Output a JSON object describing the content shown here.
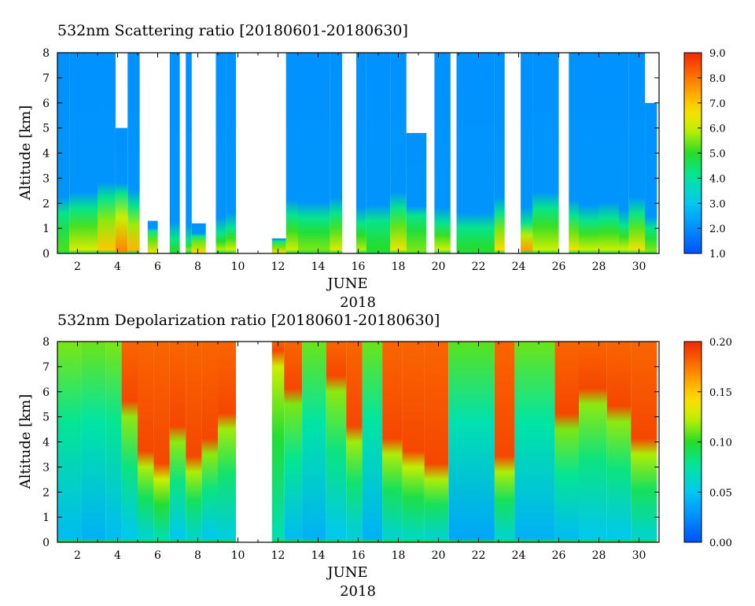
{
  "chart_data": [
    {
      "type": "heatmap",
      "title": "532nm Scattering ratio [20180601-20180630]",
      "ylabel": "Altitude [km]",
      "xlabel": "JUNE",
      "xlabel2": "2018",
      "xlim": [
        1,
        31
      ],
      "ylim": [
        0,
        8
      ],
      "x_ticks": [
        2,
        4,
        6,
        8,
        10,
        12,
        14,
        16,
        18,
        20,
        22,
        24,
        26,
        28,
        30
      ],
      "x_tick_labels": [
        "2",
        "4",
        "6",
        "8",
        "10",
        "12",
        "14",
        "16",
        "18",
        "20",
        "22",
        "24",
        "26",
        "28",
        "30"
      ],
      "y_ticks": [
        0,
        1,
        2,
        3,
        4,
        5,
        6,
        7,
        8
      ],
      "y_tick_labels": [
        "0",
        "1",
        "2",
        "3",
        "4",
        "5",
        "6",
        "7",
        "8"
      ],
      "colorbar": {
        "min": 1.0,
        "max": 9.0,
        "ticks": [
          1.0,
          2.0,
          3.0,
          4.0,
          5.0,
          6.0,
          7.0,
          8.0,
          9.0
        ],
        "tick_labels": [
          "1.0",
          "2.0",
          "3.0",
          "4.0",
          "5.0",
          "6.0",
          "7.0",
          "8.0",
          "9.0"
        ]
      },
      "columns": [
        {
          "from": 1.0,
          "to": 1.6,
          "top": 8,
          "base": 1.6,
          "low": 5.2
        },
        {
          "from": 1.6,
          "to": 3.0,
          "top": 8,
          "base": 1.8,
          "low": 6.2
        },
        {
          "from": 3.0,
          "to": 3.9,
          "top": 8,
          "base": 2.2,
          "low": 7.0
        },
        {
          "from": 3.9,
          "to": 4.5,
          "top": 5.0,
          "base": 2.4,
          "low": 7.8
        },
        {
          "from": 4.5,
          "to": 5.1,
          "top": 8,
          "base": 1.9,
          "low": 7.2
        },
        {
          "from": 5.5,
          "to": 6.0,
          "top": 1.3,
          "base": 0.9,
          "low": 6.5
        },
        {
          "from": 6.6,
          "to": 7.1,
          "top": 8,
          "base": 0.6,
          "low": 5.0
        },
        {
          "from": 7.4,
          "to": 7.7,
          "top": 8,
          "base": 0.5,
          "low": 5.5
        },
        {
          "from": 7.7,
          "to": 8.4,
          "top": 1.2,
          "base": 0.7,
          "low": 6.8
        },
        {
          "from": 8.9,
          "to": 9.4,
          "top": 8,
          "base": 0.8,
          "low": 5.8
        },
        {
          "from": 9.4,
          "to": 9.9,
          "top": 8,
          "base": 1.0,
          "low": 6.0
        },
        {
          "from": 11.7,
          "to": 12.4,
          "top": 0.6,
          "base": 0.5,
          "low": 6.5
        },
        {
          "from": 12.4,
          "to": 13.0,
          "top": 8,
          "base": 1.5,
          "low": 6.0
        },
        {
          "from": 13.0,
          "to": 14.6,
          "top": 8,
          "base": 1.4,
          "low": 5.5
        },
        {
          "from": 14.6,
          "to": 15.2,
          "top": 8,
          "base": 1.6,
          "low": 6.2
        },
        {
          "from": 15.9,
          "to": 16.4,
          "top": 8,
          "base": 1.2,
          "low": 5.8
        },
        {
          "from": 16.4,
          "to": 17.6,
          "top": 8,
          "base": 1.3,
          "low": 5.0
        },
        {
          "from": 17.6,
          "to": 18.4,
          "top": 8,
          "base": 1.8,
          "low": 6.5
        },
        {
          "from": 18.4,
          "to": 19.4,
          "top": 4.8,
          "base": 1.5,
          "low": 5.5
        },
        {
          "from": 19.8,
          "to": 20.6,
          "top": 8,
          "base": 1.2,
          "low": 6.0
        },
        {
          "from": 20.9,
          "to": 22.8,
          "top": 8,
          "base": 1.0,
          "low": 5.0
        },
        {
          "from": 22.8,
          "to": 23.3,
          "top": 8,
          "base": 1.6,
          "low": 6.8
        },
        {
          "from": 24.1,
          "to": 24.7,
          "top": 8,
          "base": 1.2,
          "low": 7.5
        },
        {
          "from": 24.7,
          "to": 26.0,
          "top": 8,
          "base": 1.8,
          "low": 6.0
        },
        {
          "from": 26.5,
          "to": 27.0,
          "top": 8,
          "base": 1.5,
          "low": 6.5
        },
        {
          "from": 27.0,
          "to": 28.0,
          "top": 8,
          "base": 1.3,
          "low": 6.0
        },
        {
          "from": 28.0,
          "to": 29.0,
          "top": 8,
          "base": 1.4,
          "low": 6.0
        },
        {
          "from": 29.0,
          "to": 29.5,
          "top": 8,
          "base": 1.1,
          "low": 6.0
        },
        {
          "from": 29.5,
          "to": 30.3,
          "top": 8,
          "base": 1.6,
          "low": 6.5
        },
        {
          "from": 30.3,
          "to": 30.9,
          "top": 6.0,
          "base": 1.0,
          "low": 5.5
        }
      ]
    },
    {
      "type": "heatmap",
      "title": "532nm Depolarization ratio [20180601-20180630]",
      "ylabel": "Altitude [km]",
      "xlabel": "JUNE",
      "xlabel2": "2018",
      "xlim": [
        1,
        31
      ],
      "ylim": [
        0,
        8
      ],
      "x_ticks": [
        2,
        4,
        6,
        8,
        10,
        12,
        14,
        16,
        18,
        20,
        22,
        24,
        26,
        28,
        30
      ],
      "x_tick_labels": [
        "2",
        "4",
        "6",
        "8",
        "10",
        "12",
        "14",
        "16",
        "18",
        "20",
        "22",
        "24",
        "26",
        "28",
        "30"
      ],
      "y_ticks": [
        0,
        1,
        2,
        3,
        4,
        5,
        6,
        7,
        8
      ],
      "y_tick_labels": [
        "0",
        "1",
        "2",
        "3",
        "4",
        "5",
        "6",
        "7",
        "8"
      ],
      "colorbar": {
        "min": 0.0,
        "max": 0.2,
        "ticks": [
          0.0,
          0.05,
          0.1,
          0.15,
          0.2
        ],
        "tick_labels": [
          "0.00",
          "0.05",
          "0.10",
          "0.15",
          "0.20"
        ]
      },
      "columns": [
        {
          "from": 1.0,
          "to": 2.2,
          "top": 8,
          "base": 8,
          "low": 0.045
        },
        {
          "from": 2.2,
          "to": 3.4,
          "top": 8,
          "base": 8,
          "low": 0.04
        },
        {
          "from": 3.4,
          "to": 4.2,
          "top": 8,
          "base": 8,
          "low": 0.045
        },
        {
          "from": 4.2,
          "to": 5.0,
          "top": 8,
          "base": 5.0,
          "low": 0.05
        },
        {
          "from": 5.0,
          "to": 5.8,
          "top": 8,
          "base": 3.0,
          "low": 0.06
        },
        {
          "from": 5.8,
          "to": 6.6,
          "top": 8,
          "base": 2.5,
          "low": 0.07
        },
        {
          "from": 6.6,
          "to": 7.4,
          "top": 8,
          "base": 4.0,
          "low": 0.05
        },
        {
          "from": 7.4,
          "to": 8.2,
          "top": 8,
          "base": 2.8,
          "low": 0.06
        },
        {
          "from": 8.2,
          "to": 9.0,
          "top": 8,
          "base": 3.5,
          "low": 0.05
        },
        {
          "from": 9.0,
          "to": 9.9,
          "top": 8,
          "base": 4.5,
          "low": 0.055
        },
        {
          "from": 11.7,
          "to": 12.3,
          "top": 8,
          "base": 7.0,
          "low": 0.07
        },
        {
          "from": 12.3,
          "to": 13.2,
          "top": 8,
          "base": 5.5,
          "low": 0.045
        },
        {
          "from": 13.2,
          "to": 14.4,
          "top": 8,
          "base": 8,
          "low": 0.04
        },
        {
          "from": 14.4,
          "to": 15.4,
          "top": 8,
          "base": 6.0,
          "low": 0.05
        },
        {
          "from": 15.4,
          "to": 16.2,
          "top": 8,
          "base": 4.0,
          "low": 0.055
        },
        {
          "from": 16.2,
          "to": 17.2,
          "top": 8,
          "base": 8,
          "low": 0.04
        },
        {
          "from": 17.2,
          "to": 18.2,
          "top": 8,
          "base": 3.5,
          "low": 0.06
        },
        {
          "from": 18.2,
          "to": 19.3,
          "top": 8,
          "base": 3.0,
          "low": 0.065
        },
        {
          "from": 19.3,
          "to": 20.5,
          "top": 8,
          "base": 2.5,
          "low": 0.06
        },
        {
          "from": 20.5,
          "to": 22.8,
          "top": 8,
          "base": 8,
          "low": 0.035
        },
        {
          "from": 22.8,
          "to": 23.8,
          "top": 8,
          "base": 2.8,
          "low": 0.06
        },
        {
          "from": 23.8,
          "to": 25.8,
          "top": 8,
          "base": 8,
          "low": 0.04
        },
        {
          "from": 25.8,
          "to": 27.0,
          "top": 8,
          "base": 4.5,
          "low": 0.045
        },
        {
          "from": 27.0,
          "to": 28.4,
          "top": 8,
          "base": 5.5,
          "low": 0.05
        },
        {
          "from": 28.4,
          "to": 29.6,
          "top": 8,
          "base": 4.8,
          "low": 0.05
        },
        {
          "from": 29.6,
          "to": 30.9,
          "top": 8,
          "base": 3.5,
          "low": 0.06
        }
      ]
    }
  ]
}
